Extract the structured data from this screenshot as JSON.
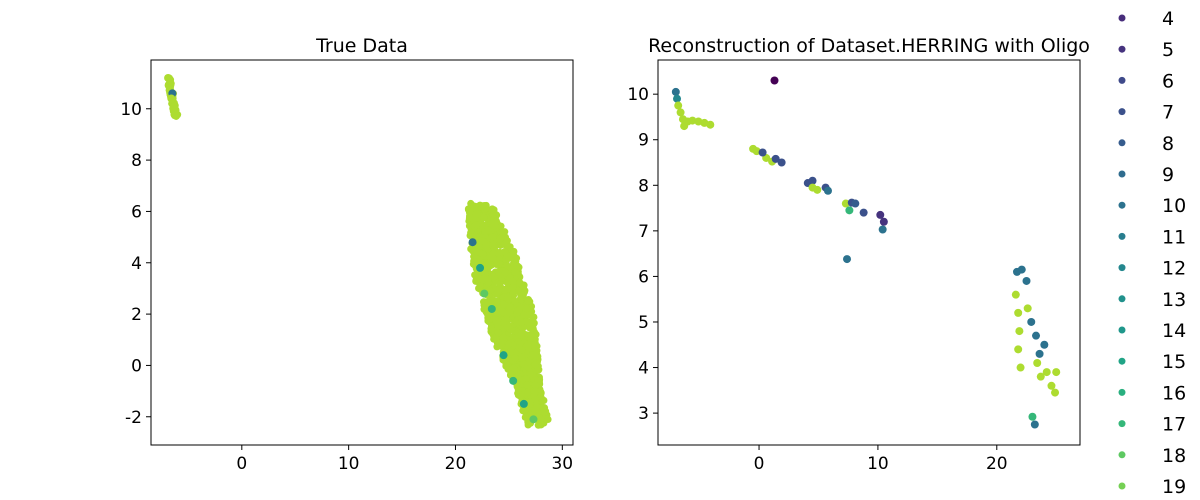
{
  "legend": {
    "placement": "right, clipped at top and bottom",
    "entries": [
      {
        "label": "4",
        "color": "#472d7b"
      },
      {
        "label": "5",
        "color": "#46337e"
      },
      {
        "label": "6",
        "color": "#3f4a8a"
      },
      {
        "label": "7",
        "color": "#3b518b"
      },
      {
        "label": "8",
        "color": "#365c8d"
      },
      {
        "label": "9",
        "color": "#2f6c8e"
      },
      {
        "label": "10",
        "color": "#2c728e"
      },
      {
        "label": "11",
        "color": "#287d8e"
      },
      {
        "label": "12",
        "color": "#24878e"
      },
      {
        "label": "13",
        "color": "#21918c"
      },
      {
        "label": "14",
        "color": "#1f978b"
      },
      {
        "label": "15",
        "color": "#20a486"
      },
      {
        "label": "16",
        "color": "#29af7f"
      },
      {
        "label": "17",
        "color": "#35b779"
      },
      {
        "label": "18",
        "color": "#5ec962"
      },
      {
        "label": "19",
        "color": "#75d054"
      }
    ]
  },
  "chart_data": [
    {
      "type": "scatter",
      "title": "True Data",
      "xlabel": "",
      "ylabel": "",
      "xlim": [
        -8.5,
        31
      ],
      "ylim": [
        -3.1,
        11.9
      ],
      "xticks": [
        0,
        10,
        20,
        30
      ],
      "yticks": [
        -2,
        0,
        2,
        4,
        6,
        8,
        10
      ],
      "ytick_labels": [
        "-2",
        "0",
        "2",
        "4",
        "6",
        "8",
        "10"
      ],
      "grid": false,
      "dominant_color": "#addc30",
      "clusters": [
        {
          "name_hint": "upper-left cluster",
          "x_range": [
            -7.1,
            -5.9
          ],
          "y_range": [
            9.7,
            11.3
          ],
          "colors": [
            "#addc30",
            "#2c728e"
          ]
        },
        {
          "name_hint": "main elongated cluster",
          "x_range": [
            21.0,
            28.8
          ],
          "y_range": [
            -2.4,
            6.4
          ],
          "colors": [
            "#addc30",
            "#5ec962",
            "#35b779",
            "#20a486",
            "#2c728e"
          ]
        }
      ],
      "points": [
        {
          "x": -6.9,
          "y": 11.2,
          "c": "#addc30"
        },
        {
          "x": -6.7,
          "y": 10.9,
          "c": "#addc30"
        },
        {
          "x": -6.5,
          "y": 10.6,
          "c": "#2c728e"
        },
        {
          "x": -6.6,
          "y": 10.4,
          "c": "#addc30"
        },
        {
          "x": -6.3,
          "y": 10.1,
          "c": "#addc30"
        },
        {
          "x": -6.2,
          "y": 9.8,
          "c": "#addc30"
        },
        {
          "x": 22.0,
          "y": 5.9,
          "c": "#addc30"
        },
        {
          "x": 22.5,
          "y": 6.2,
          "c": "#addc30"
        },
        {
          "x": 21.6,
          "y": 4.8,
          "c": "#2c728e"
        },
        {
          "x": 22.3,
          "y": 3.8,
          "c": "#20a486"
        },
        {
          "x": 23.4,
          "y": 2.2,
          "c": "#35b779"
        },
        {
          "x": 24.5,
          "y": 0.4,
          "c": "#20a486"
        },
        {
          "x": 25.4,
          "y": -0.6,
          "c": "#35b779"
        },
        {
          "x": 26.4,
          "y": -1.5,
          "c": "#20a486"
        },
        {
          "x": 27.3,
          "y": -2.1,
          "c": "#5ec962"
        },
        {
          "x": 28.0,
          "y": -2.3,
          "c": "#addc30"
        },
        {
          "x": 22.7,
          "y": 2.8,
          "c": "#5ec962"
        }
      ]
    },
    {
      "type": "scatter",
      "title": "Reconstruction of Dataset.HERRING with Oligo",
      "xlabel": "",
      "ylabel": "",
      "xlim": [
        -8.5,
        27.0
      ],
      "ylim": [
        2.3,
        10.75
      ],
      "xticks": [
        0,
        10,
        20
      ],
      "yticks": [
        3,
        4,
        5,
        6,
        7,
        8,
        9,
        10
      ],
      "grid": false,
      "clusters": [
        {
          "x_range": [
            -7.0,
            -3.8
          ],
          "y_range": [
            9.3,
            10.1
          ]
        },
        {
          "x_range": [
            -0.5,
            2.0
          ],
          "y_range": [
            8.4,
            8.8
          ]
        },
        {
          "x_range": [
            3.8,
            10.6
          ],
          "y_range": [
            7.0,
            8.2
          ]
        },
        {
          "x_range": [
            21.2,
            25.2
          ],
          "y_range": [
            2.7,
            6.2
          ]
        }
      ],
      "points": [
        {
          "x": -7.0,
          "y": 10.05,
          "c": "#2c728e"
        },
        {
          "x": -6.9,
          "y": 9.9,
          "c": "#24878e"
        },
        {
          "x": -6.8,
          "y": 9.75,
          "c": "#addc30"
        },
        {
          "x": -6.6,
          "y": 9.6,
          "c": "#addc30"
        },
        {
          "x": -6.4,
          "y": 9.45,
          "c": "#addc30"
        },
        {
          "x": -6.3,
          "y": 9.3,
          "c": "#addc30"
        },
        {
          "x": -6.0,
          "y": 9.4,
          "c": "#addc30"
        },
        {
          "x": -5.6,
          "y": 9.42,
          "c": "#addc30"
        },
        {
          "x": -5.1,
          "y": 9.4,
          "c": "#addc30"
        },
        {
          "x": -4.6,
          "y": 9.37,
          "c": "#addc30"
        },
        {
          "x": -4.1,
          "y": 9.33,
          "c": "#addc30"
        },
        {
          "x": 1.3,
          "y": 10.3,
          "c": "#440154"
        },
        {
          "x": -0.5,
          "y": 8.8,
          "c": "#addc30"
        },
        {
          "x": -0.2,
          "y": 8.75,
          "c": "#addc30"
        },
        {
          "x": 0.6,
          "y": 8.6,
          "c": "#addc30"
        },
        {
          "x": 1.1,
          "y": 8.52,
          "c": "#addc30"
        },
        {
          "x": 1.4,
          "y": 8.58,
          "c": "#3b518b"
        },
        {
          "x": 1.9,
          "y": 8.5,
          "c": "#3b518b"
        },
        {
          "x": 0.3,
          "y": 8.72,
          "c": "#3b518b"
        },
        {
          "x": 4.1,
          "y": 8.05,
          "c": "#3b518b"
        },
        {
          "x": 4.5,
          "y": 8.1,
          "c": "#3b518b"
        },
        {
          "x": 4.5,
          "y": 7.95,
          "c": "#addc30"
        },
        {
          "x": 4.9,
          "y": 7.9,
          "c": "#addc30"
        },
        {
          "x": 5.6,
          "y": 7.95,
          "c": "#3b518b"
        },
        {
          "x": 5.8,
          "y": 7.88,
          "c": "#2c728e"
        },
        {
          "x": 7.3,
          "y": 7.6,
          "c": "#addc30"
        },
        {
          "x": 7.6,
          "y": 7.45,
          "c": "#35b779"
        },
        {
          "x": 7.8,
          "y": 7.62,
          "c": "#3b518b"
        },
        {
          "x": 8.1,
          "y": 7.6,
          "c": "#365c8d"
        },
        {
          "x": 8.8,
          "y": 7.4,
          "c": "#3b518b"
        },
        {
          "x": 10.2,
          "y": 7.35,
          "c": "#46337e"
        },
        {
          "x": 10.5,
          "y": 7.2,
          "c": "#46337e"
        },
        {
          "x": 10.4,
          "y": 7.03,
          "c": "#2c728e"
        },
        {
          "x": 7.4,
          "y": 6.38,
          "c": "#2c728e"
        },
        {
          "x": 21.7,
          "y": 6.1,
          "c": "#2c728e"
        },
        {
          "x": 22.1,
          "y": 6.15,
          "c": "#2c728e"
        },
        {
          "x": 22.5,
          "y": 5.9,
          "c": "#2c728e"
        },
        {
          "x": 21.6,
          "y": 5.6,
          "c": "#addc30"
        },
        {
          "x": 21.8,
          "y": 5.2,
          "c": "#addc30"
        },
        {
          "x": 21.9,
          "y": 4.8,
          "c": "#addc30"
        },
        {
          "x": 21.8,
          "y": 4.4,
          "c": "#addc30"
        },
        {
          "x": 22.0,
          "y": 4.0,
          "c": "#addc30"
        },
        {
          "x": 22.6,
          "y": 5.3,
          "c": "#addc30"
        },
        {
          "x": 22.9,
          "y": 5.0,
          "c": "#2c728e"
        },
        {
          "x": 23.3,
          "y": 4.7,
          "c": "#2c728e"
        },
        {
          "x": 23.6,
          "y": 4.3,
          "c": "#2c728e"
        },
        {
          "x": 24.0,
          "y": 4.5,
          "c": "#2c728e"
        },
        {
          "x": 23.4,
          "y": 4.1,
          "c": "#addc30"
        },
        {
          "x": 23.7,
          "y": 3.8,
          "c": "#addc30"
        },
        {
          "x": 24.2,
          "y": 3.9,
          "c": "#addc30"
        },
        {
          "x": 24.6,
          "y": 3.6,
          "c": "#addc30"
        },
        {
          "x": 24.9,
          "y": 3.45,
          "c": "#addc30"
        },
        {
          "x": 25.0,
          "y": 3.9,
          "c": "#addc30"
        },
        {
          "x": 23.0,
          "y": 2.92,
          "c": "#35b779"
        },
        {
          "x": 23.2,
          "y": 2.75,
          "c": "#2c728e"
        }
      ]
    }
  ]
}
